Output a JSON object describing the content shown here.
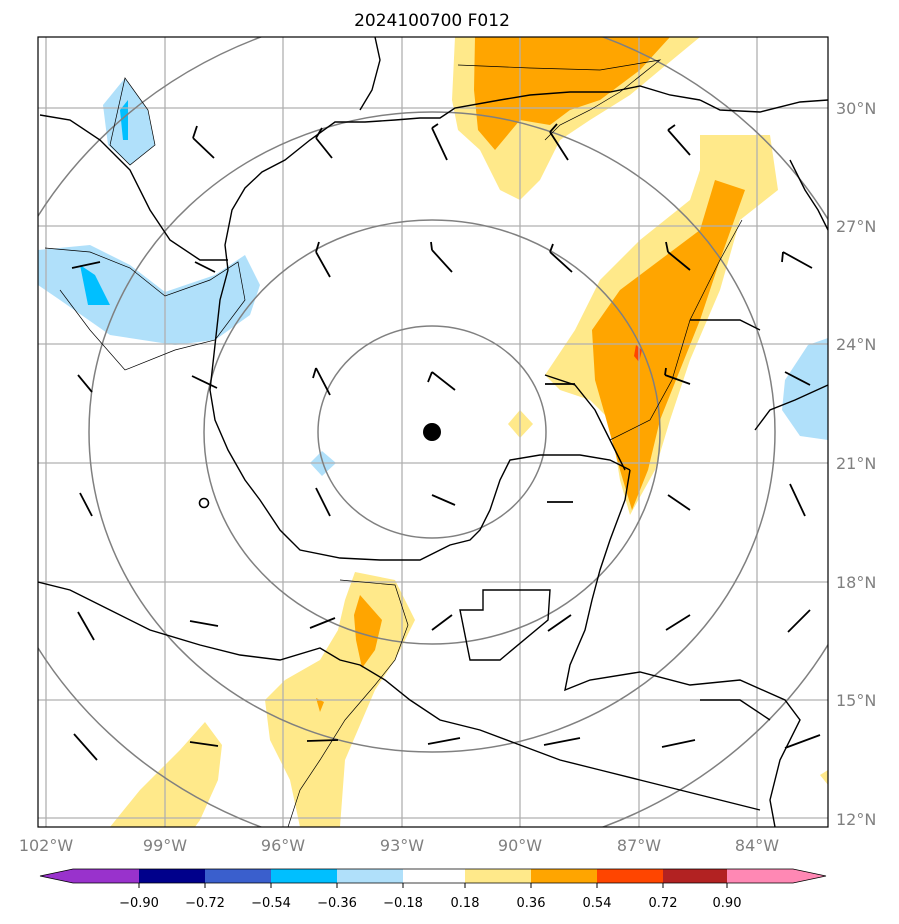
{
  "title": "2024100700 F012",
  "map": {
    "lon_ticks": [
      "102°W",
      "99°W",
      "96°W",
      "93°W",
      "90°W",
      "87°W",
      "84°W"
    ],
    "lat_ticks": [
      "30°N",
      "27°N",
      "24°N",
      "21°N",
      "18°N",
      "15°N",
      "12°N"
    ],
    "extent": {
      "lon": [
        -102,
        -82
      ],
      "lat": [
        11.8,
        31.7
      ]
    },
    "storm_center": {
      "lon": -92.0,
      "lat": 21.8
    },
    "range_rings": 4,
    "colors": {
      "gridline": "#b0b0b0",
      "ring": "#808080",
      "coast": "#000000"
    }
  },
  "colorbar": {
    "tick_labels": [
      "−0.90",
      "−0.72",
      "−0.54",
      "−0.36",
      "−0.18",
      "0.18",
      "0.36",
      "0.54",
      "0.72",
      "0.90"
    ],
    "colors": [
      "#9932cc",
      "#00008b",
      "#3a5fcd",
      "#00bfff",
      "#b0e0fa",
      "#ffffff",
      "#ffe98a",
      "#ffa500",
      "#ff4500",
      "#b22222",
      "#ff88b4"
    ]
  }
}
